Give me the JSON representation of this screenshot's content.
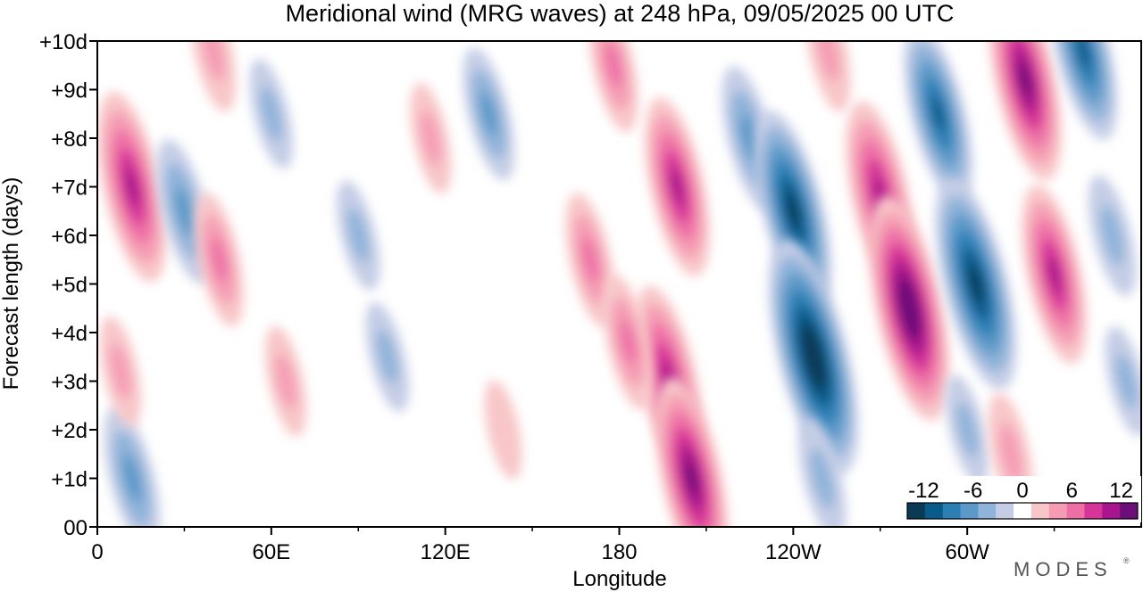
{
  "chart_data": {
    "type": "heatmap",
    "title": "Meridional wind (MRG waves) at  248 hPa,  09/05/2025  00 UTC",
    "xlabel": "Longitude",
    "ylabel": "Forecast length (days)",
    "x_ticks": [
      {
        "lon": 0,
        "label": "0"
      },
      {
        "lon": 60,
        "label": "60E"
      },
      {
        "lon": 120,
        "label": "120E"
      },
      {
        "lon": 180,
        "label": "180"
      },
      {
        "lon": 240,
        "label": "120W"
      },
      {
        "lon": 300,
        "label": "60W"
      }
    ],
    "x_minor_ticks": [
      30,
      90,
      150,
      210,
      270,
      330
    ],
    "xlim": [
      0,
      360
    ],
    "y_ticks": [
      {
        "day": 0,
        "label": "00"
      },
      {
        "day": 1,
        "label": "+1d"
      },
      {
        "day": 2,
        "label": "+2d"
      },
      {
        "day": 3,
        "label": "+3d"
      },
      {
        "day": 4,
        "label": "+4d"
      },
      {
        "day": 5,
        "label": "+5d"
      },
      {
        "day": 6,
        "label": "+6d"
      },
      {
        "day": 7,
        "label": "+7d"
      },
      {
        "day": 8,
        "label": "+8d"
      },
      {
        "day": 9,
        "label": "+9d"
      },
      {
        "day": 10,
        "label": "+10d"
      }
    ],
    "ylim": [
      0,
      10
    ],
    "colorbar": {
      "levels": [
        -14,
        -12,
        -10,
        -8,
        -6,
        -4,
        -2,
        2,
        4,
        6,
        8,
        10,
        12,
        14
      ],
      "colors": [
        "#0b3a55",
        "#0a5a8a",
        "#2b7fb5",
        "#5c99c8",
        "#8fb3d9",
        "#c5cde6",
        "#ffffff",
        "#f8c6c8",
        "#f59cb4",
        "#ee6fa6",
        "#d63598",
        "#a8158c",
        "#6c0f78"
      ],
      "tick_labels": [
        {
          "value": -12,
          "label": "-12"
        },
        {
          "value": -6,
          "label": "-6"
        },
        {
          "value": 0,
          "label": "0"
        },
        {
          "value": 6,
          "label": "6"
        },
        {
          "value": 12,
          "label": "12"
        }
      ]
    },
    "features": [
      {
        "lon": 12,
        "day": 7.0,
        "value": 10
      },
      {
        "lon": 30,
        "day": 6.5,
        "value": -6
      },
      {
        "lon": 42,
        "day": 5.5,
        "value": 5
      },
      {
        "lon": 60,
        "day": 8.5,
        "value": -3
      },
      {
        "lon": 65,
        "day": 3.0,
        "value": 3
      },
      {
        "lon": 12,
        "day": 1.0,
        "value": -6
      },
      {
        "lon": 8,
        "day": 3.2,
        "value": 3
      },
      {
        "lon": 40,
        "day": 9.8,
        "value": 4
      },
      {
        "lon": 135,
        "day": 8.5,
        "value": -5
      },
      {
        "lon": 115,
        "day": 8.0,
        "value": 3
      },
      {
        "lon": 90,
        "day": 6.0,
        "value": -3
      },
      {
        "lon": 100,
        "day": 3.5,
        "value": -3
      },
      {
        "lon": 140,
        "day": 2.0,
        "value": 2
      },
      {
        "lon": 170,
        "day": 5.5,
        "value": 5
      },
      {
        "lon": 178,
        "day": 9.5,
        "value": 5
      },
      {
        "lon": 200,
        "day": 7.0,
        "value": 9
      },
      {
        "lon": 197,
        "day": 3.0,
        "value": 10
      },
      {
        "lon": 205,
        "day": 1.0,
        "value": 11
      },
      {
        "lon": 183,
        "day": 3.8,
        "value": 5
      },
      {
        "lon": 225,
        "day": 8.0,
        "value": -6
      },
      {
        "lon": 240,
        "day": 6.5,
        "value": -11
      },
      {
        "lon": 247,
        "day": 3.5,
        "value": -14
      },
      {
        "lon": 250,
        "day": 1.0,
        "value": -4
      },
      {
        "lon": 252,
        "day": 9.8,
        "value": 4
      },
      {
        "lon": 270,
        "day": 6.8,
        "value": 10
      },
      {
        "lon": 280,
        "day": 4.5,
        "value": 13
      },
      {
        "lon": 290,
        "day": 8.5,
        "value": -9
      },
      {
        "lon": 303,
        "day": 5.0,
        "value": -12
      },
      {
        "lon": 300,
        "day": 2.0,
        "value": -3
      },
      {
        "lon": 320,
        "day": 9.2,
        "value": 11
      },
      {
        "lon": 330,
        "day": 5.2,
        "value": 9
      },
      {
        "lon": 340,
        "day": 9.8,
        "value": -9
      },
      {
        "lon": 350,
        "day": 6.0,
        "value": -4
      },
      {
        "lon": 315,
        "day": 1.5,
        "value": 4
      },
      {
        "lon": 355,
        "day": 3.0,
        "value": -3
      }
    ]
  },
  "branding": {
    "label": "MODES"
  }
}
